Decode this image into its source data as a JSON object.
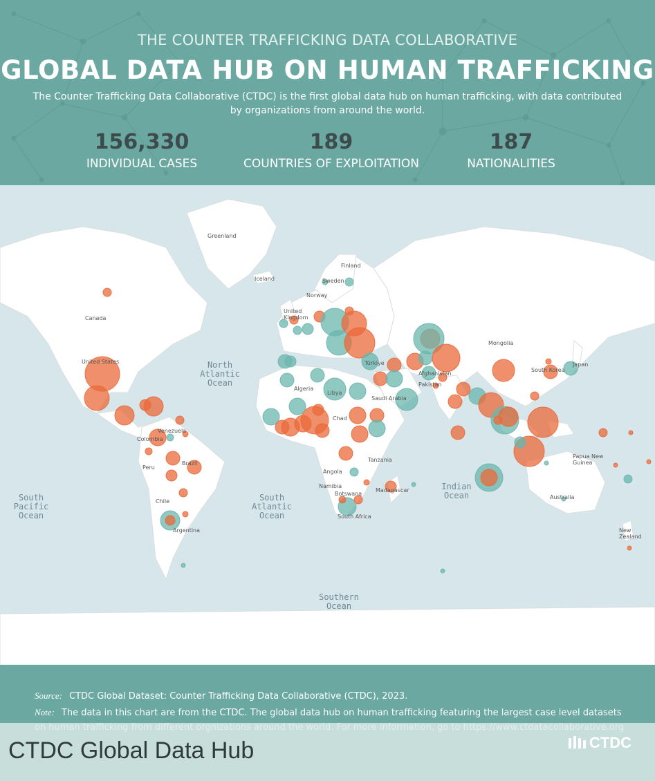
{
  "header": {
    "eyebrow": "THE COUNTER TRAFFICKING DATA COLLABORATIVE",
    "title": "GLOBAL DATA HUB ON HUMAN TRAFFICKING",
    "subtitle": "The Counter Trafficking Data Collaborative (CTDC) is the first global data hub on human trafficking, with data contributed by organizations from around the world.",
    "stats": [
      {
        "value": "156,330",
        "label": "INDIVIDUAL CASES"
      },
      {
        "value": "189",
        "label": "COUNTRIES OF EXPLOITATION"
      },
      {
        "value": "187",
        "label": "NATIONALITIES"
      }
    ]
  },
  "map": {
    "colors": {
      "ocean": "#d7e6ea",
      "land": "#ffffff",
      "orange": "#e9693a",
      "teal": "#6bb5ae",
      "header": "#6aa8a1"
    },
    "oceans": {
      "north_atlantic": "North\nAtlantic\nOcean",
      "south_pacific": "South\nPacific\nOcean",
      "south_atlantic": "South\nAtlantic\nOcean",
      "indian": "Indian\nOcean",
      "southern": "Southern\nOcean"
    },
    "places": {
      "greenland": "Greenland",
      "iceland": "Iceland",
      "finland": "Finland",
      "sweden": "Sweden",
      "norway": "Norway",
      "united_kingdom": "United\nKingdom",
      "canada": "Canada",
      "united_states": "United States",
      "mongolia": "Mongolia",
      "south_korea": "South Korea",
      "japan": "Japan",
      "afghanistan": "Afghanistan",
      "pakistan": "Pakistan",
      "turkiye": "Türkiye",
      "algeria": "Algeria",
      "libya": "Libya",
      "saudi_arabia": "Saudi Arabia",
      "chad": "Chad",
      "tanzania": "Tanzania",
      "angola": "Angola",
      "namibia": "Namibia",
      "botswana": "Botswana",
      "south_africa": "South Africa",
      "madagascar": "Madagascar",
      "venezuela": "Venezuela",
      "colombia": "Colombia",
      "peru": "Peru",
      "brazil": "Brazil",
      "chile": "Chile",
      "argentina": "Argentina",
      "papua_new_guinea": "Papua New\nGuinea",
      "australia": "Australia",
      "new_zealand": "New\nZealand"
    }
  },
  "footer": {
    "source_label": "Source:",
    "source_text": "CTDC Global Dataset: Counter Trafficking Data Collaborative (CTDC), 2023.",
    "note_label": "Note:",
    "note_text": "The data in this chart are from the CTDC. The global data hub on human trafficking featuring the largest case level datasets on human trafficking  from different orgnizations around the world. For more information, go to https://www.ctdatacollaborative.org",
    "brand": "CTDC"
  },
  "caption": "CTDC Global Data Hub"
}
